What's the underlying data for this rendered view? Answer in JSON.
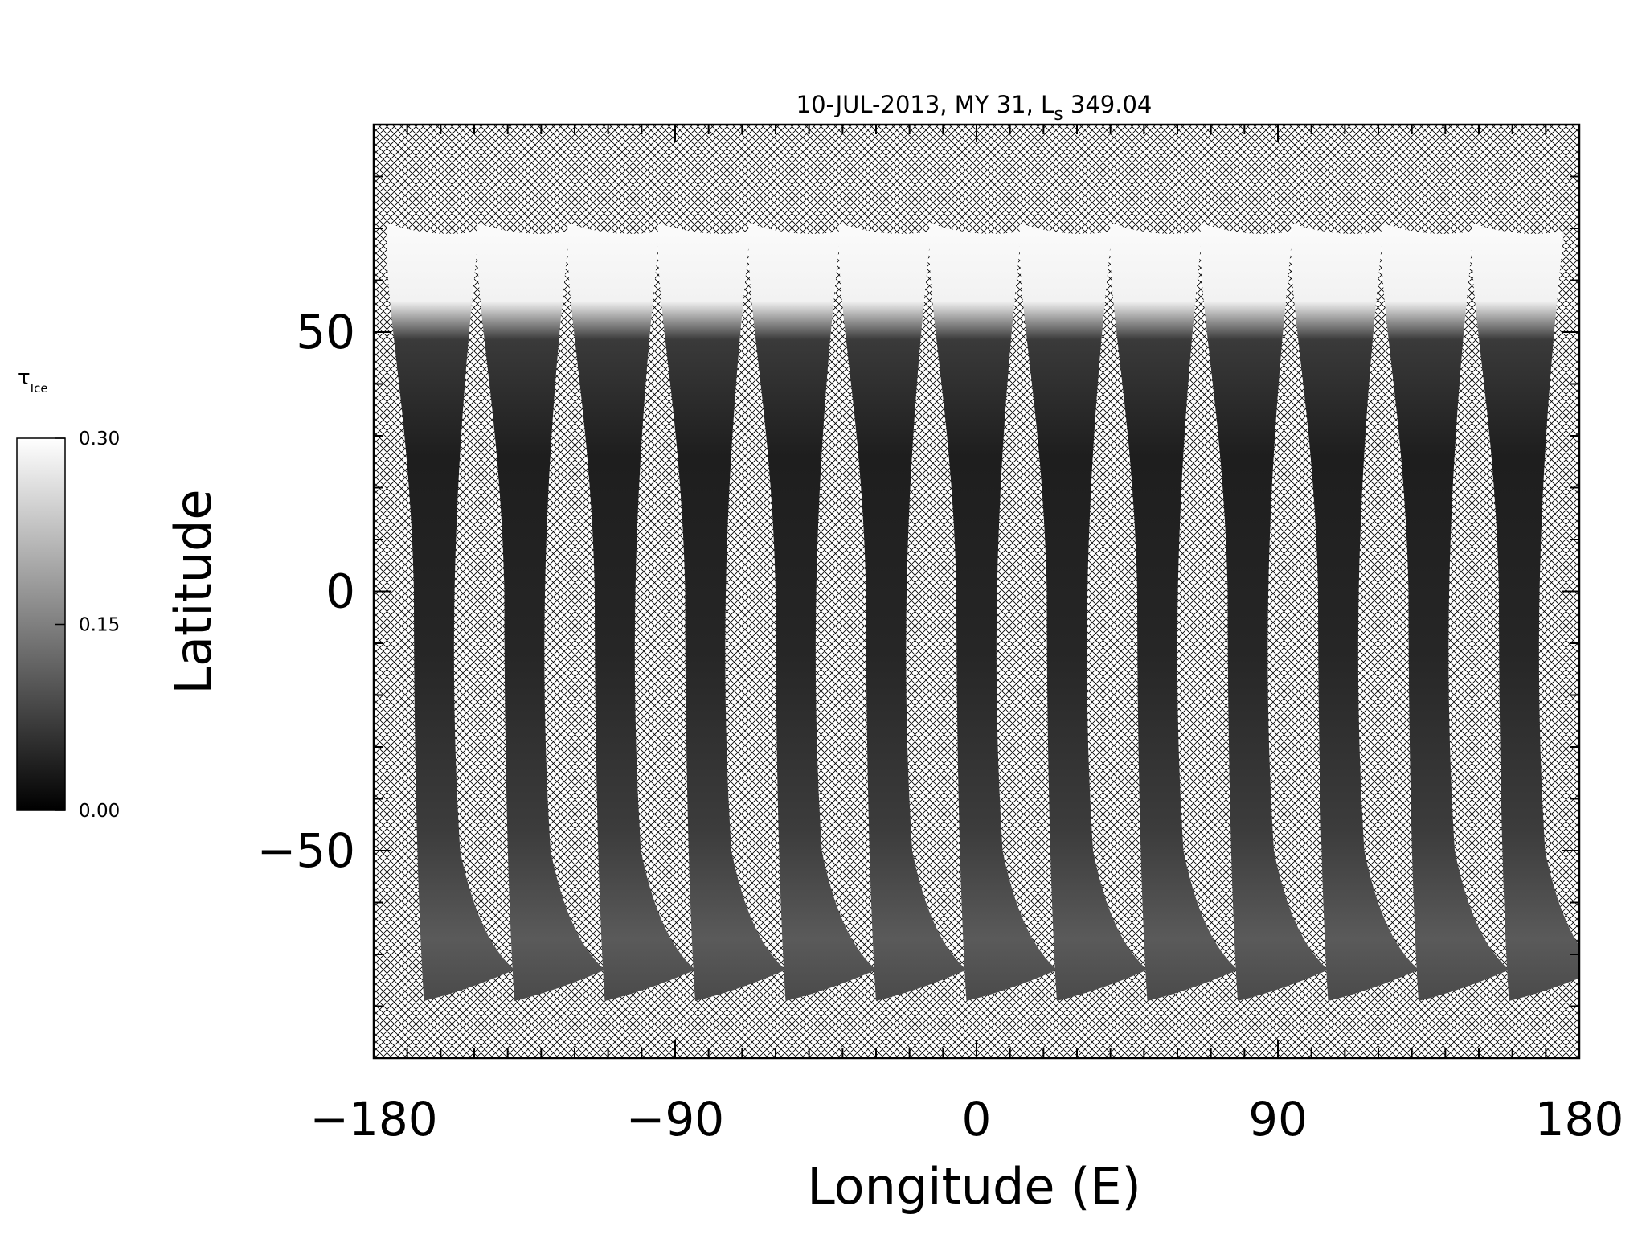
{
  "chart_data": {
    "type": "heatmap",
    "title_parts": {
      "prefix": "10-JUL-2013, MY 31,  L",
      "subscript": "s",
      "suffix": " 349.04"
    },
    "xlabel": "Longitude (E)",
    "ylabel": "Latitude",
    "xlim": [
      -180,
      180
    ],
    "ylim": [
      -90,
      90
    ],
    "x_ticks": [
      -180,
      -90,
      0,
      90,
      180
    ],
    "x_tick_labels": [
      "−180",
      "−90",
      "0",
      "90",
      "180"
    ],
    "x_minor_step": 10,
    "y_ticks": [
      -50,
      0,
      50
    ],
    "y_tick_labels": [
      "−50",
      "0",
      "50"
    ],
    "y_minor_step": 10,
    "missing_data_pattern": "crosshatch",
    "swath_count": 13,
    "swath_center_longitudes": [
      -163,
      -136,
      -109,
      -82,
      -55,
      -28,
      -1,
      26,
      53,
      80,
      107,
      134,
      161
    ],
    "colorbar": {
      "label_symbol": "τ",
      "label_subscript": "Ice",
      "min": 0.0,
      "max": 0.3,
      "tick_values": [
        0.0,
        0.15,
        0.3
      ],
      "tick_labels": [
        "0.00",
        "0.15",
        "0.30"
      ],
      "color_low": "#000000",
      "color_high": "#ffffff"
    }
  }
}
